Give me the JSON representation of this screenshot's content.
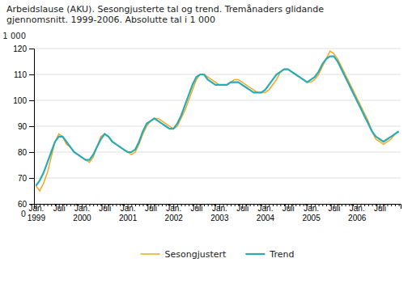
{
  "chart_data": {
    "type": "line",
    "title": "Arbeidslause (AKU). Sesongjusterte tal og trend. Tremånaders glidande\ngjennomsnitt. 1999-2006. Absolutte tal i 1 000",
    "annotations": [
      "0",
      "1 000"
    ],
    "categories": [
      "Jan.\n1999",
      null,
      null,
      null,
      null,
      null,
      "Juli",
      null,
      null,
      null,
      null,
      null,
      "Jan.\n2000",
      null,
      null,
      null,
      null,
      null,
      "Juli",
      null,
      null,
      null,
      null,
      null,
      "Jan.\n2001",
      null,
      null,
      null,
      null,
      null,
      "Juli",
      null,
      null,
      null,
      null,
      null,
      "Jan.\n2002",
      null,
      null,
      null,
      null,
      null,
      "Juli",
      null,
      null,
      null,
      null,
      null,
      "Jan.\n2003",
      null,
      null,
      null,
      null,
      null,
      "Juli",
      null,
      null,
      null,
      null,
      null,
      "Jan.\n2004",
      null,
      null,
      null,
      null,
      null,
      "Juli",
      null,
      null,
      null,
      null,
      null,
      "Jan.\n2005",
      null,
      null,
      null,
      null,
      null,
      "Juli",
      null,
      null,
      null,
      null,
      null,
      "Jan.\n2006",
      null,
      null,
      null,
      null,
      null,
      "Juli",
      null,
      null,
      null,
      null,
      null
    ],
    "series": [
      {
        "name": "Sesongjustert",
        "color": "#f5a623",
        "values": [
          67,
          65,
          68,
          72,
          78,
          84,
          87,
          86,
          83,
          82,
          80,
          79,
          78,
          77,
          76,
          78,
          82,
          86,
          87,
          86,
          84,
          83,
          82,
          81,
          80,
          79,
          80,
          83,
          87,
          90,
          92,
          93,
          93,
          92,
          91,
          90,
          89,
          90,
          93,
          96,
          100,
          104,
          108,
          110,
          110,
          109,
          108,
          107,
          106,
          106,
          106,
          107,
          108,
          108,
          107,
          106,
          105,
          104,
          103,
          103,
          103,
          104,
          106,
          108,
          111,
          112,
          112,
          111,
          110,
          109,
          108,
          107,
          107,
          108,
          110,
          113,
          116,
          119,
          118,
          116,
          113,
          110,
          107,
          104,
          101,
          98,
          95,
          92,
          88,
          85,
          84,
          83,
          84,
          85,
          87,
          88
        ]
      },
      {
        "name": "Trend",
        "color": "#29abb3",
        "values": [
          67,
          69,
          72,
          76,
          80,
          84,
          86,
          86,
          84,
          82,
          80,
          79,
          78,
          77,
          77,
          79,
          82,
          85,
          87,
          86,
          84,
          83,
          82,
          81,
          80,
          80,
          81,
          84,
          88,
          91,
          92,
          93,
          92,
          91,
          90,
          89,
          89,
          91,
          94,
          98,
          102,
          106,
          109,
          110,
          110,
          108,
          107,
          106,
          106,
          106,
          106,
          107,
          107,
          107,
          106,
          105,
          104,
          103,
          103,
          103,
          104,
          106,
          108,
          110,
          111,
          112,
          112,
          111,
          110,
          109,
          108,
          107,
          108,
          109,
          111,
          114,
          116,
          117,
          117,
          115,
          112,
          109,
          106,
          103,
          100,
          97,
          94,
          91,
          88,
          86,
          85,
          84,
          85,
          86,
          87,
          88
        ]
      }
    ],
    "ylim": [
      60,
      120
    ],
    "yticks": [
      60,
      70,
      80,
      90,
      100,
      110,
      120
    ],
    "grid": true,
    "legend": "bottom"
  }
}
